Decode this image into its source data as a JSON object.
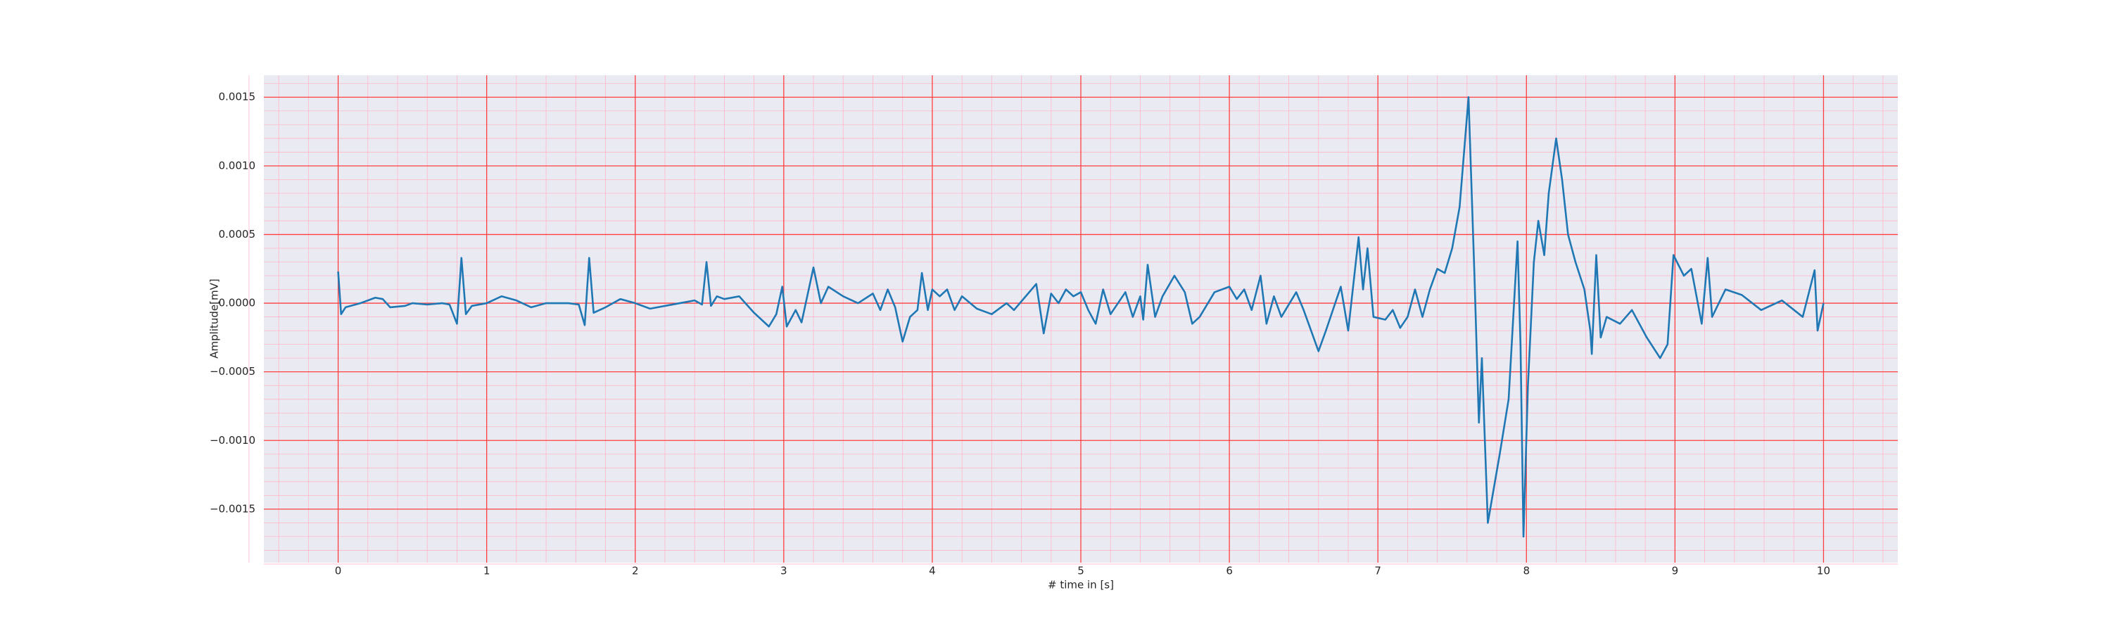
{
  "chart_data": {
    "type": "line",
    "xlabel": "# time in [s]",
    "ylabel": "Amplitude[mV]",
    "xlim": [
      -0.5,
      10.5
    ],
    "ylim": [
      -0.00189,
      0.00166
    ],
    "xticks": [
      0,
      1,
      2,
      3,
      4,
      5,
      6,
      7,
      8,
      9,
      10
    ],
    "yticks": [
      {
        "value": -0.0015,
        "label": "−0.0015"
      },
      {
        "value": -0.001,
        "label": "−0.0010"
      },
      {
        "value": -0.0005,
        "label": "−0.0005"
      },
      {
        "value": 0,
        "label": "0.0000"
      },
      0.0005,
      {
        "value": 0.001,
        "label": "0.0010"
      },
      0.0015
    ],
    "grid": true,
    "minor_grid": true,
    "grid_color": "#ff4040",
    "minor_grid_color": "#ffb6c8",
    "background": "#eaeaf2",
    "series": [
      {
        "color": "#1f77b4",
        "x": [
          0,
          0.02,
          0.05,
          0.15,
          0.25,
          0.3,
          0.35,
          0.45,
          0.5,
          0.6,
          0.7,
          0.75,
          0.8,
          0.83,
          0.86,
          0.9,
          1.0,
          1.1,
          1.2,
          1.3,
          1.4,
          1.55,
          1.62,
          1.66,
          1.69,
          1.72,
          1.8,
          1.9,
          2.0,
          2.1,
          2.2,
          2.3,
          2.4,
          2.45,
          2.48,
          2.51,
          2.55,
          2.6,
          2.7,
          2.8,
          2.9,
          2.95,
          2.99,
          3.02,
          3.08,
          3.12,
          3.2,
          3.25,
          3.3,
          3.4,
          3.5,
          3.6,
          3.65,
          3.7,
          3.75,
          3.8,
          3.85,
          3.9,
          3.93,
          3.97,
          4.0,
          4.05,
          4.1,
          4.15,
          4.2,
          4.3,
          4.4,
          4.5,
          4.55,
          4.7,
          4.75,
          4.8,
          4.85,
          4.9,
          4.95,
          5.0,
          5.05,
          5.1,
          5.15,
          5.2,
          5.3,
          5.35,
          5.4,
          5.42,
          5.45,
          5.5,
          5.55,
          5.63,
          5.7,
          5.75,
          5.8,
          5.9,
          6.0,
          6.05,
          6.1,
          6.15,
          6.21,
          6.25,
          6.3,
          6.35,
          6.45,
          6.5,
          6.6,
          6.65,
          6.75,
          6.8,
          6.87,
          6.9,
          6.93,
          6.97,
          7.05,
          7.1,
          7.15,
          7.2,
          7.25,
          7.3,
          7.35,
          7.4,
          7.45,
          7.5,
          7.55,
          7.61,
          7.65,
          7.68,
          7.7,
          7.74,
          7.82,
          7.88,
          7.94,
          7.96,
          7.98,
          8.01,
          8.05,
          8.08,
          8.12,
          8.15,
          8.2,
          8.24,
          8.28,
          8.33,
          8.39,
          8.43,
          8.44,
          8.47,
          8.5,
          8.54,
          8.63,
          8.71,
          8.81,
          8.9,
          8.95,
          8.99,
          9.06,
          9.11,
          9.18,
          9.22,
          9.25,
          9.34,
          9.45,
          9.58,
          9.72,
          9.86,
          9.94,
          9.96,
          10.0
        ],
        "values": [
          0.00023,
          -8e-05,
          -3e-05,
          0,
          4e-05,
          3e-05,
          -3e-05,
          -2e-05,
          0,
          -1e-05,
          0,
          -1e-05,
          -0.00015,
          0.00033,
          -8e-05,
          -2e-05,
          0,
          5e-05,
          2e-05,
          -3e-05,
          0,
          0,
          -1e-05,
          -0.00016,
          0.00033,
          -7e-05,
          -3e-05,
          3e-05,
          0,
          -4e-05,
          -2e-05,
          0,
          2e-05,
          -1e-05,
          0.0003,
          -2e-05,
          5e-05,
          3e-05,
          5e-05,
          -7e-05,
          -0.00017,
          -8e-05,
          0.00012,
          -0.00017,
          -5e-05,
          -0.00014,
          0.00026,
          0,
          0.00012,
          5e-05,
          0,
          7e-05,
          -5e-05,
          0.0001,
          -3e-05,
          -0.00028,
          -0.0001,
          -5e-05,
          0.00022,
          -5e-05,
          0.0001,
          5e-05,
          0.0001,
          -5e-05,
          5e-05,
          -4e-05,
          -8e-05,
          0,
          -5e-05,
          0.00014,
          -0.00022,
          7e-05,
          0,
          0.0001,
          5e-05,
          8e-05,
          -5e-05,
          -0.00015,
          0.0001,
          -8e-05,
          8e-05,
          -0.0001,
          5e-05,
          -0.00012,
          0.00028,
          -0.0001,
          5e-05,
          0.0002,
          8e-05,
          -0.00015,
          -0.0001,
          8e-05,
          0.00012,
          3e-05,
          0.0001,
          -5e-05,
          0.0002,
          -0.00015,
          5e-05,
          -0.0001,
          8e-05,
          -5e-05,
          -0.00035,
          -0.0002,
          0.00012,
          -0.0002,
          0.00048,
          0.0001,
          0.0004,
          -0.0001,
          -0.00012,
          -5e-05,
          -0.00018,
          -0.0001,
          0.0001,
          -0.0001,
          0.0001,
          0.00025,
          0.00022,
          0.0004,
          0.0007,
          0.0015,
          0.0002,
          -0.00087,
          -0.0004,
          -0.0016,
          -0.0011,
          -0.0007,
          0.00045,
          -0.0003,
          -0.0017,
          -0.0006,
          0.0003,
          0.0006,
          0.00035,
          0.0008,
          0.0012,
          0.0009,
          0.0005,
          0.0003,
          0.0001,
          -0.0002,
          -0.00037,
          0.00035,
          -0.00025,
          -0.0001,
          -0.00015,
          -5e-05,
          -0.00025,
          -0.0004,
          -0.0003,
          0.00035,
          0.0002,
          0.00025,
          -0.00015,
          0.00033,
          -0.0001,
          0.0001,
          6e-05,
          -5e-05,
          2e-05,
          -0.0001,
          0.00024,
          -0.0002,
          0
        ]
      }
    ]
  }
}
